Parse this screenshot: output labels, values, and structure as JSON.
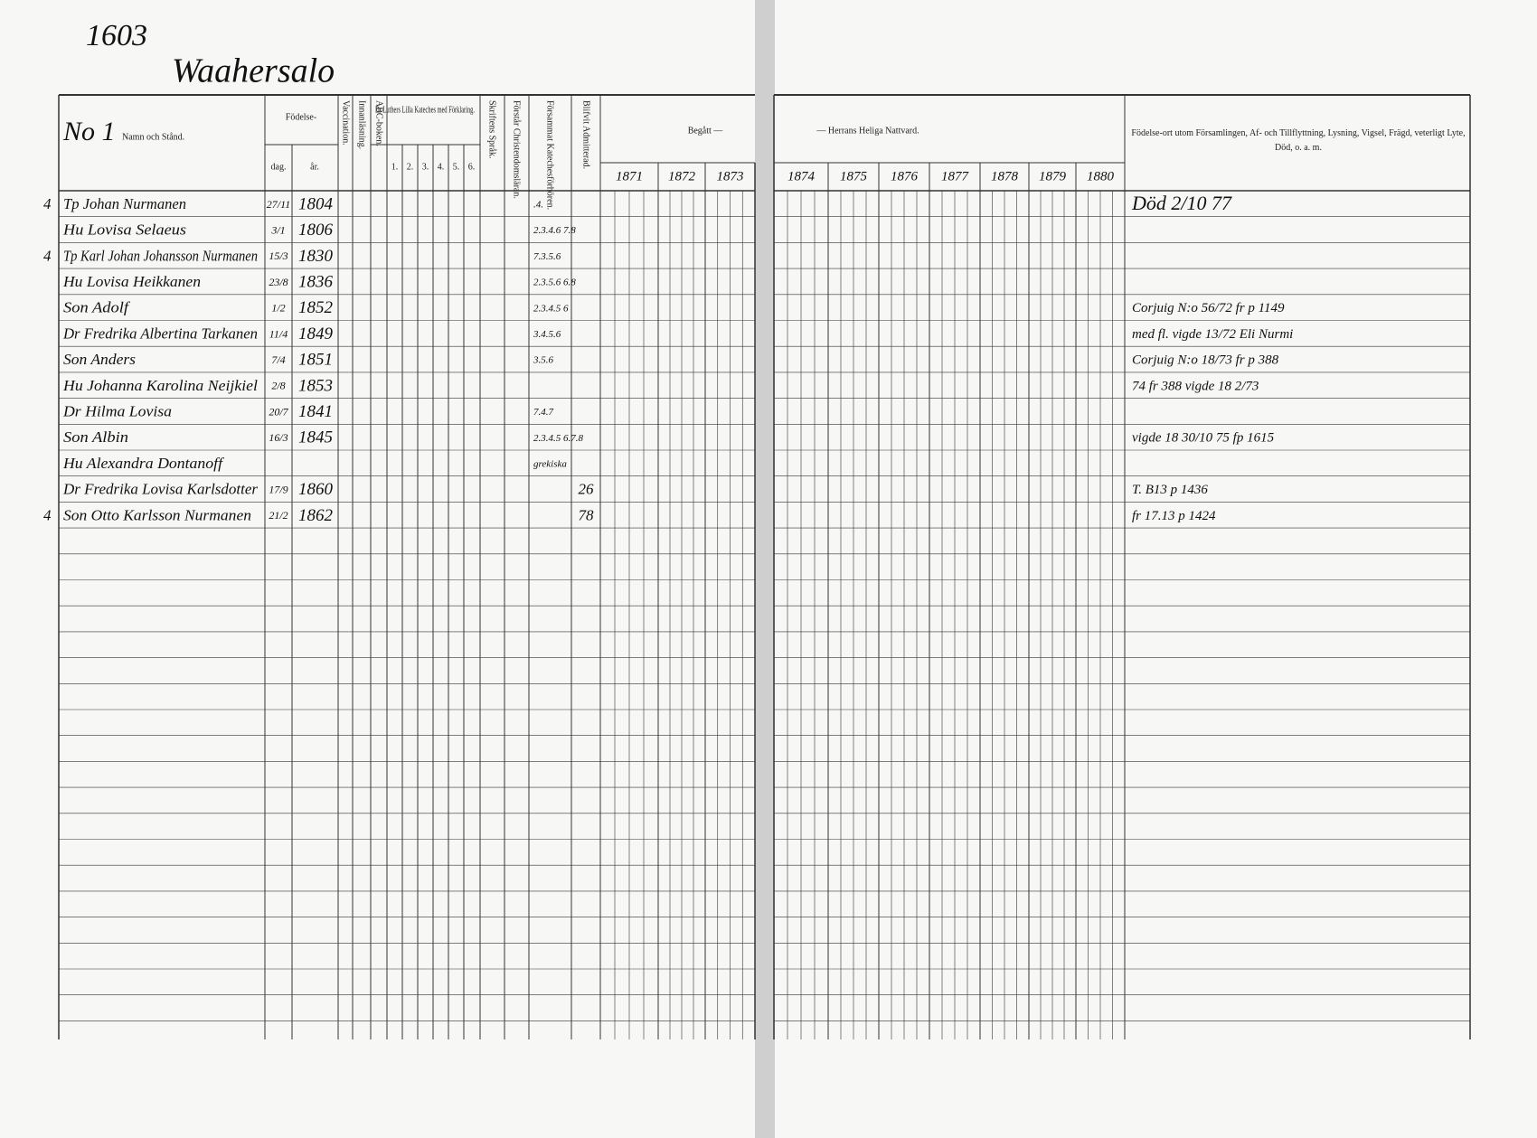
{
  "page_number": "1603",
  "village": "Waahersalo",
  "household": "No 1",
  "headers": {
    "name": "Namn och Stånd.",
    "birth": "Födelse-",
    "day": "dag.",
    "year": "år.",
    "vaccination": "Vaccination.",
    "reading": "Innanläsning.",
    "abc": "ABC-boken.",
    "catechism": "Dr Luthers Lilla Kateches med Förklaring.",
    "catechism_parts": [
      "1.",
      "2.",
      "3.",
      "4.",
      "5.",
      "6."
    ],
    "scripture": "Skriftens Språk.",
    "christianity": "Förstår Christendomsläran.",
    "examinations": "Försammat Katechesförhören.",
    "admitted": "Blifvit Admitterad.",
    "partook": "Begått —",
    "communion": "— Herrans Heliga Nattvard.",
    "years": [
      "1871",
      "1872",
      "1873",
      "1874",
      "1875",
      "1876",
      "1877",
      "1878",
      "1879",
      "1880"
    ],
    "notes": "Födelse-ort utom Församlingen, Af- och Tillflyttning, Lysning, Vigsel, Frägd, veterligt Lyte, Död, o. a. m."
  },
  "rows": [
    {
      "marker": "4",
      "name": "Tp Johan Nurmanen",
      "day": "27/11",
      "year": "1804",
      "catechism": ".4.",
      "note": "Död 2/10 77"
    },
    {
      "name": "Hu Lovisa Selaeus",
      "day": "3/1",
      "year": "1806",
      "catechism": "2.3.4.6 7.8"
    },
    {
      "marker": "4",
      "name": "Tp Karl Johan Johansson Nurmanen",
      "day": "15/3",
      "year": "1830",
      "catechism": "7.3.5.6"
    },
    {
      "name": "Hu Lovisa Heikkanen",
      "day": "23/8",
      "year": "1836",
      "catechism": "2.3.5.6 6.8"
    },
    {
      "name": "Son Adolf",
      "day": "1/2",
      "year": "1852",
      "catechism": "2.3.4.5 6",
      "note": "Corjuig N:o 56/72 fr p 1149"
    },
    {
      "name": "Dr Fredrika Albertina Tarkanen",
      "day": "11/4",
      "year": "1849",
      "catechism": "3.4.5.6",
      "note": "med fl. vigde 13/72 Eli Nurmi"
    },
    {
      "name": "Son Anders",
      "day": "7/4",
      "year": "1851",
      "catechism": "3.5.6",
      "note": "Corjuig N:o 18/73 fr p 388"
    },
    {
      "name": "Hu Johanna Karolina Neijkiel",
      "day": "2/8",
      "year": "1853",
      "note": "74 fr 388 vigde 18 2/73"
    },
    {
      "name": "Dr Hilma Lovisa",
      "day": "20/7",
      "year": "1841",
      "catechism": "7.4.7"
    },
    {
      "name": "Son Albin",
      "day": "16/3",
      "year": "1845",
      "catechism": "2.3.4.5 6.7.8",
      "note": "vigde 18 30/10 75 fp 1615"
    },
    {
      "name": "Hu Alexandra Dontanoff",
      "catechism": "grekiska"
    },
    {
      "name": "Dr Fredrika Lovisa Karlsdotter",
      "day": "17/9",
      "year": "1860",
      "admitted": "26",
      "note": "T. B13 p 1436"
    },
    {
      "marker": "4",
      "name": "Son Otto Karlsson Nurmanen",
      "day": "21/2",
      "year": "1862",
      "admitted": "78",
      "note": "fr 17.13 p 1424"
    }
  ]
}
